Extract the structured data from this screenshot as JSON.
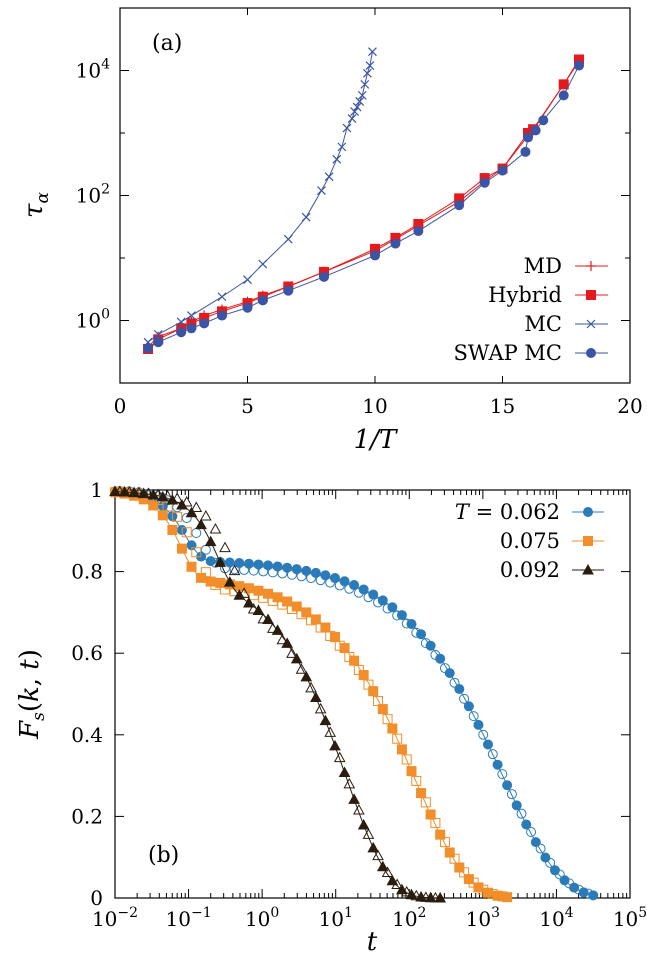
{
  "chart_data": [
    {
      "type": "line",
      "panel_label": "(a)",
      "xlabel": "1/T",
      "ylabel": "τα",
      "xlim": [
        0,
        20
      ],
      "ylim": [
        0.1,
        100000
      ],
      "yscale": "log",
      "x_ticks": [
        {
          "v": 0,
          "label": "0"
        },
        {
          "v": 5,
          "label": "5"
        },
        {
          "v": 10,
          "label": "10"
        },
        {
          "v": 15,
          "label": "15"
        },
        {
          "v": 20,
          "label": "20"
        }
      ],
      "y_ticks": [
        {
          "v": 1,
          "base": "10",
          "exp": "0"
        },
        {
          "v": 100,
          "base": "10",
          "exp": "2"
        },
        {
          "v": 10000,
          "base": "10",
          "exp": "4"
        }
      ],
      "legend_position": "bottom-right",
      "series": [
        {
          "name": "MD",
          "color": "#e41a1c",
          "marker": "plus",
          "x": [
            1.1,
            1.5,
            2.4,
            2.8,
            3.3,
            4.0,
            5.0,
            5.6,
            6.6,
            8.0,
            10.0,
            10.8,
            11.7,
            13.3,
            14.3,
            15.0,
            16.0,
            16.2,
            17.4,
            18.0
          ],
          "y": [
            0.38,
            0.55,
            0.75,
            0.95,
            1.2,
            1.5,
            2.0,
            2.5,
            3.5,
            6.0,
            13,
            20,
            33,
            80,
            170,
            270,
            900,
            1100,
            6000,
            14000
          ]
        },
        {
          "name": "Hybrid",
          "color": "#e41a1c",
          "marker": "square",
          "x": [
            1.1,
            1.5,
            2.4,
            2.8,
            3.3,
            4.0,
            5.0,
            5.6,
            6.6,
            8.0,
            10.0,
            10.8,
            11.7,
            13.3,
            14.3,
            15.0,
            16.0,
            16.2,
            17.4,
            18.0
          ],
          "y": [
            0.35,
            0.5,
            0.75,
            0.9,
            1.1,
            1.4,
            1.9,
            2.4,
            3.5,
            6.0,
            14,
            21,
            35,
            90,
            190,
            270,
            1000,
            1150,
            6000,
            15000
          ]
        },
        {
          "name": "MC",
          "color": "#3a55a4",
          "marker": "cross",
          "x": [
            1.1,
            1.5,
            2.4,
            2.8,
            4.0,
            5.0,
            5.6,
            6.6,
            7.3,
            7.9,
            8.2,
            8.5,
            8.7,
            8.9,
            9.1,
            9.2,
            9.3,
            9.4,
            9.5,
            9.6,
            9.7,
            9.8,
            9.9
          ],
          "y": [
            0.45,
            0.6,
            0.95,
            1.2,
            2.4,
            4.5,
            8,
            20,
            45,
            120,
            200,
            380,
            600,
            1200,
            1700,
            2200,
            2600,
            3200,
            4000,
            6000,
            9000,
            12000,
            20000
          ]
        },
        {
          "name": "SWAP MC",
          "color": "#3a55a4",
          "marker": "circle",
          "x": [
            1.1,
            1.5,
            2.4,
            2.8,
            3.3,
            4.0,
            5.0,
            5.6,
            6.6,
            8.0,
            10.0,
            10.8,
            11.7,
            13.3,
            14.3,
            15.0,
            15.9,
            16.0,
            16.3,
            16.6,
            17.4,
            18.0
          ],
          "y": [
            0.36,
            0.45,
            0.65,
            0.75,
            0.9,
            1.2,
            1.6,
            2.1,
            3.0,
            5.0,
            11,
            17,
            27,
            70,
            160,
            250,
            500,
            850,
            1100,
            1600,
            4000,
            12000
          ]
        }
      ]
    },
    {
      "type": "scatter",
      "panel_label": "(b)",
      "xlabel": "t",
      "ylabel": "Fs(k,t)",
      "xlim": [
        0.01,
        100000
      ],
      "xscale": "log",
      "ylim": [
        0,
        1
      ],
      "x_ticks": [
        {
          "v": 0.01,
          "base": "10",
          "exp": "−2"
        },
        {
          "v": 0.1,
          "base": "10",
          "exp": "−1"
        },
        {
          "v": 1,
          "base": "10",
          "exp": "0"
        },
        {
          "v": 10,
          "base": "10",
          "exp": "1"
        },
        {
          "v": 100,
          "base": "10",
          "exp": "2"
        },
        {
          "v": 1000,
          "base": "10",
          "exp": "3"
        },
        {
          "v": 10000,
          "base": "10",
          "exp": "4"
        },
        {
          "v": 100000,
          "base": "10",
          "exp": "5"
        }
      ],
      "y_ticks": [
        {
          "v": 0,
          "label": "0"
        },
        {
          "v": 0.2,
          "label": "0.2"
        },
        {
          "v": 0.4,
          "label": "0.4"
        },
        {
          "v": 0.6,
          "label": "0.6"
        },
        {
          "v": 0.8,
          "label": "0.8"
        },
        {
          "v": 1,
          "label": "1"
        }
      ],
      "legend_position": "top-right",
      "legend_prefix": "T = ",
      "series": [
        {
          "name": "0.062",
          "color": "#2b7bb9",
          "marker": "circle",
          "tau": 1800,
          "plateau": 0.83,
          "tfast": 0.09,
          "beta": 0.55
        },
        {
          "name": "0.075",
          "color": "#f28e2b",
          "marker": "square",
          "tau": 120,
          "plateau": 0.79,
          "tfast": 0.08,
          "beta": 0.62
        },
        {
          "name": "0.092",
          "color": "#2b1d0e",
          "marker": "triangle",
          "tau": 14,
          "plateau": 0.8,
          "tfast": 0.25,
          "beta": 0.75
        }
      ]
    }
  ]
}
